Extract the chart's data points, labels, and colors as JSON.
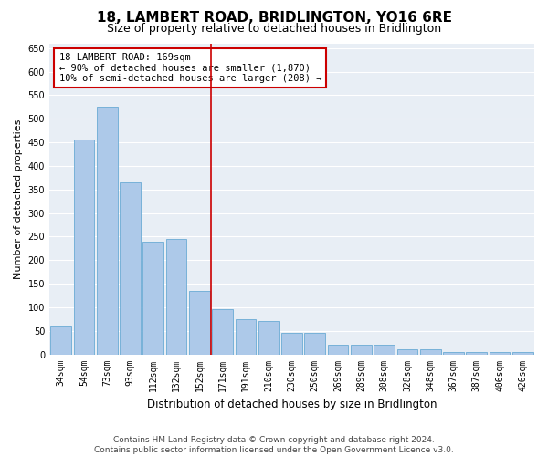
{
  "title": "18, LAMBERT ROAD, BRIDLINGTON, YO16 6RE",
  "subtitle": "Size of property relative to detached houses in Bridlington",
  "xlabel": "Distribution of detached houses by size in Bridlington",
  "ylabel": "Number of detached properties",
  "categories": [
    "34sqm",
    "54sqm",
    "73sqm",
    "93sqm",
    "112sqm",
    "132sqm",
    "152sqm",
    "171sqm",
    "191sqm",
    "210sqm",
    "230sqm",
    "250sqm",
    "269sqm",
    "289sqm",
    "308sqm",
    "328sqm",
    "348sqm",
    "367sqm",
    "387sqm",
    "406sqm",
    "426sqm"
  ],
  "values": [
    60,
    455,
    525,
    365,
    240,
    245,
    135,
    95,
    75,
    70,
    45,
    45,
    20,
    20,
    20,
    10,
    10,
    5,
    5,
    5,
    5
  ],
  "bar_color": "#adc9e9",
  "bar_edge_color": "#6aaad4",
  "vline_index": 7,
  "vline_color": "#cc0000",
  "annotation_text": "18 LAMBERT ROAD: 169sqm\n← 90% of detached houses are smaller (1,870)\n10% of semi-detached houses are larger (208) →",
  "annotation_box_facecolor": "#ffffff",
  "annotation_box_edgecolor": "#cc0000",
  "ylim": [
    0,
    660
  ],
  "yticks": [
    0,
    50,
    100,
    150,
    200,
    250,
    300,
    350,
    400,
    450,
    500,
    550,
    600,
    650
  ],
  "axes_facecolor": "#e8eef5",
  "figure_facecolor": "#ffffff",
  "grid_color": "#ffffff",
  "footer_line1": "Contains HM Land Registry data © Crown copyright and database right 2024.",
  "footer_line2": "Contains public sector information licensed under the Open Government Licence v3.0.",
  "title_fontsize": 11,
  "subtitle_fontsize": 9,
  "xlabel_fontsize": 8.5,
  "ylabel_fontsize": 8,
  "tick_fontsize": 7,
  "annot_fontsize": 7.5,
  "footer_fontsize": 6.5
}
